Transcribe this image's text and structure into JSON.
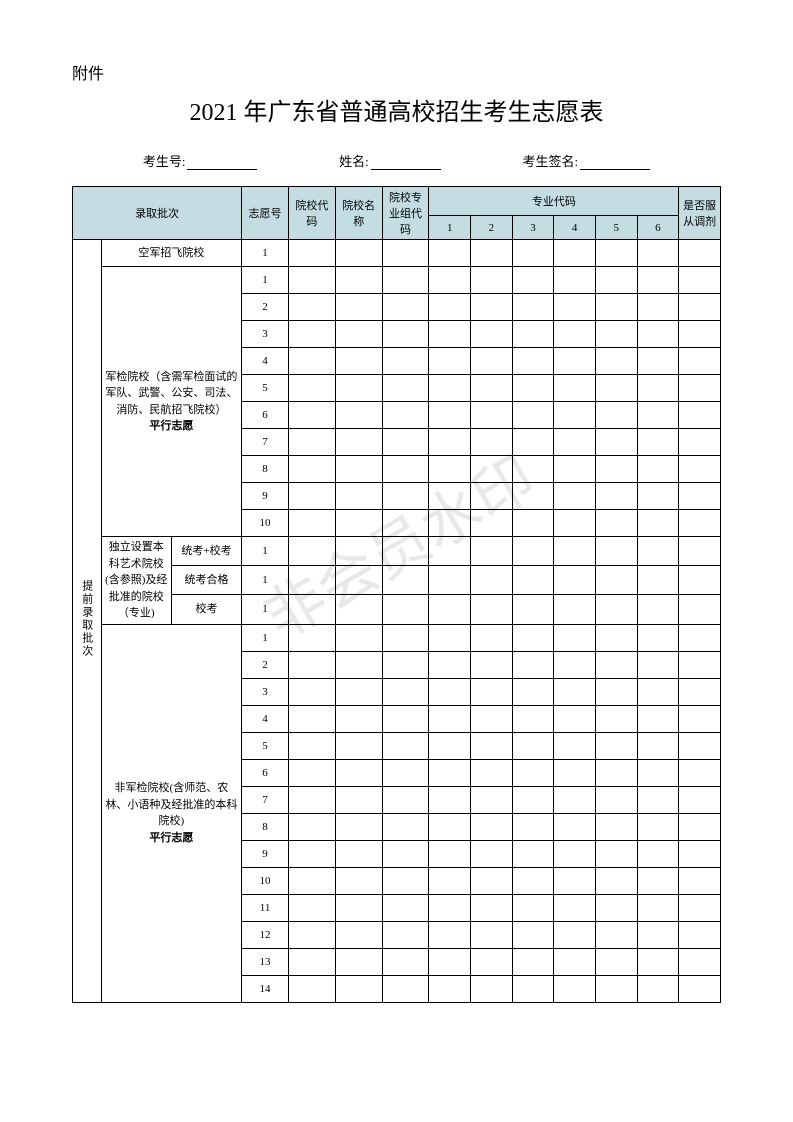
{
  "attachment": "附件",
  "title": "2021 年广东省普通高校招生考生志愿表",
  "info": {
    "student_id_label": "考生号:",
    "name_label": "姓名:",
    "signature_label": "考生签名:"
  },
  "headers": {
    "batch": "录取批次",
    "choice_no": "志愿号",
    "school_code": "院校代码",
    "school_name": "院校名称",
    "group_code": "院校专业组代码",
    "major_code": "专业代码",
    "majors": [
      "1",
      "2",
      "3",
      "4",
      "5",
      "6"
    ],
    "adjust": "是否服从调剂"
  },
  "side_label": "提前录取批次",
  "sections": {
    "airforce": {
      "label": "空军招飞院校",
      "rows": [
        "1"
      ]
    },
    "military": {
      "label_line1": "军检院校（含需军检面试的军队、武警、公安、司法、消防、民航招飞院校）",
      "label_bold": "平行志愿",
      "rows": [
        "1",
        "2",
        "3",
        "4",
        "5",
        "6",
        "7",
        "8",
        "9",
        "10"
      ]
    },
    "art": {
      "group_label": "独立设置本科艺术院校(含参照)及经批准的院校（专业)",
      "sub1": "统考+校考",
      "sub2": "统考合格",
      "sub3": "校考",
      "row": "1"
    },
    "nonmilitary": {
      "label_line1": "非军检院校(含师范、农林、小语种及经批准的本科院校)",
      "label_bold": "平行志愿",
      "rows": [
        "1",
        "2",
        "3",
        "4",
        "5",
        "6",
        "7",
        "8",
        "9",
        "10",
        "11",
        "12",
        "13",
        "14"
      ]
    }
  },
  "watermark": "非会员水印",
  "colors": {
    "header_bg": "#c4dde2",
    "border": "#000000",
    "text": "#000000",
    "watermark": "#d9d9d9"
  }
}
